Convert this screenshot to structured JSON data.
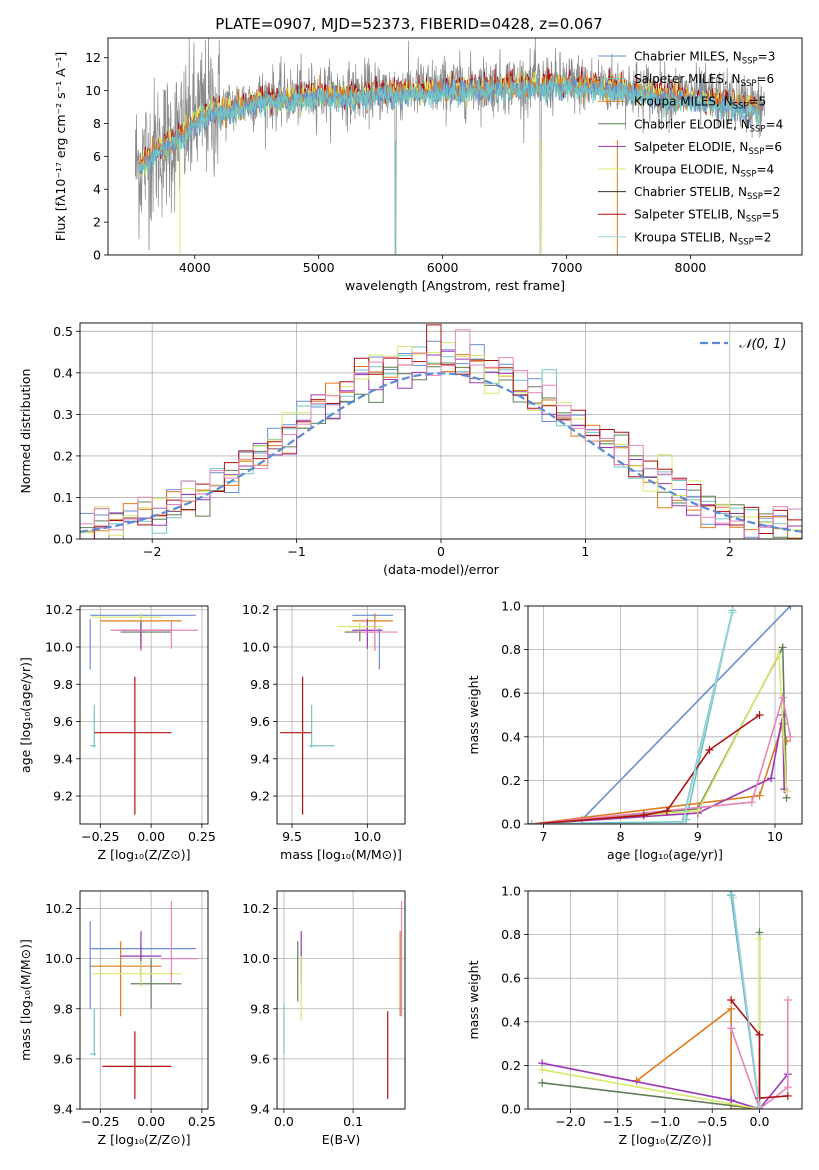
{
  "colors": {
    "chabrier_miles": "#6a8fd0",
    "salpeter_miles": "#72c5c5",
    "kroupa_miles": "#df7b1e",
    "chabrier_elodie": "#5f7f55",
    "salpeter_elodie": "#9b38b5",
    "kroupa_elodie": "#d8e86a",
    "chabrier_stelib": "#333333",
    "salpeter_stelib": "#b01010",
    "kroupa_stelib": "#9fd3d8",
    "pink": "#e686b8",
    "gray": "#8a8a8a",
    "normal": "#5b8bd4"
  },
  "chart_data": [
    {
      "id": "spectrum",
      "type": "line",
      "title": "PLATE=0907, MJD=52373, FIBERID=0428, z=0.067",
      "xlabel": "wavelength [Angstrom, rest frame]",
      "ylabel": "Flux [fλ10⁻¹⁷ erg cm⁻² s⁻¹ A⁻¹]",
      "xlim": [
        3300,
        8900
      ],
      "ylim": [
        0,
        13.2
      ],
      "xticks": [
        "4000",
        "5000",
        "6000",
        "7000",
        "8000"
      ],
      "yticks": [
        "0",
        "2",
        "4",
        "6",
        "8",
        "10",
        "12"
      ],
      "legend_position": "top-right",
      "legend": [
        {
          "name": "Chabrier MILES, N",
          "sub": "SSP",
          "eq": "=3"
        },
        {
          "name": "Salpeter MILES, N",
          "sub": "SSP",
          "eq": "=6"
        },
        {
          "name": "Kroupa MILES, N",
          "sub": "SSP",
          "eq": "=5"
        },
        {
          "name": "Chabrier ELODIE, N",
          "sub": "SSP",
          "eq": "=4"
        },
        {
          "name": "Salpeter ELODIE, N",
          "sub": "SSP",
          "eq": "=6"
        },
        {
          "name": "Kroupa ELODIE, N",
          "sub": "SSP",
          "eq": "=4"
        },
        {
          "name": "Chabrier STELIB, N",
          "sub": "SSP",
          "eq": "=2"
        },
        {
          "name": "Salpeter STELIB, N",
          "sub": "SSP",
          "eq": "=5"
        },
        {
          "name": "Kroupa STELIB, N",
          "sub": "SSP",
          "eq": "=2"
        }
      ],
      "continuum": [
        [
          3550,
          5.5
        ],
        [
          3700,
          6.5
        ],
        [
          3900,
          7.4
        ],
        [
          4000,
          8.3
        ],
        [
          4100,
          8.9
        ],
        [
          4300,
          9.0
        ],
        [
          4500,
          9.5
        ],
        [
          4800,
          9.7
        ],
        [
          5000,
          9.9
        ],
        [
          5200,
          9.8
        ],
        [
          5500,
          10.0
        ],
        [
          6000,
          10.2
        ],
        [
          6500,
          10.4
        ],
        [
          7000,
          10.5
        ],
        [
          7400,
          10.3
        ],
        [
          7800,
          9.8
        ],
        [
          8200,
          9.5
        ],
        [
          8600,
          9.0
        ]
      ]
    },
    {
      "id": "residuals",
      "type": "histogram",
      "xlabel": "(data-model)/error",
      "ylabel": "Normed distribution",
      "xlim": [
        -2.5,
        2.5
      ],
      "ylim": [
        0,
        0.52
      ],
      "xticks": [
        "−2",
        "−1",
        "0",
        "1",
        "2"
      ],
      "yticks": [
        "0.0",
        "0.1",
        "0.2",
        "0.3",
        "0.4",
        "0.5"
      ],
      "legend_label": "𝒩(0, 1)",
      "bin_width": 0.1
    },
    {
      "id": "age_vs_Z",
      "type": "errorbar",
      "xlabel": "Z [log₁₀(Z/Z⊙)]",
      "ylabel": "age  [log₁₀(age/yr)]",
      "xlim": [
        -0.35,
        0.28
      ],
      "ylim": [
        9.05,
        10.22
      ],
      "xticks": [
        "−0.25",
        "0.00",
        "0.25"
      ],
      "yticks": [
        "9.2",
        "9.4",
        "9.6",
        "9.8",
        "10.0",
        "10.2"
      ],
      "points": [
        {
          "c": "chabrier_miles",
          "x": -0.05,
          "xe": [
            0.25,
            0.27
          ],
          "y": 10.17,
          "ye": [
            0.01,
            0.01
          ]
        },
        {
          "c": "salpeter_miles",
          "x": -0.28,
          "xe": [
            0.02,
            0.01
          ],
          "y": 9.47,
          "ye": [
            0.01,
            0.22
          ]
        },
        {
          "c": "kroupa_miles",
          "x": -0.05,
          "xe": [
            0.2,
            0.2
          ],
          "y": 10.14,
          "ye": [
            0.16,
            0.04
          ]
        },
        {
          "c": "chabrier_elodie",
          "x": -0.05,
          "xe": [
            0.1,
            0.15
          ],
          "y": 10.08,
          "ye": [
            0.05,
            0.03
          ]
        },
        {
          "c": "salpeter_elodie",
          "x": -0.05,
          "xe": [
            0.11,
            0.15
          ],
          "y": 10.09,
          "ye": [
            0.1,
            0.06
          ]
        },
        {
          "c": "kroupa_elodie",
          "x": -0.05,
          "xe": [
            0.24,
            0.1
          ],
          "y": 10.16,
          "ye": [
            0.02,
            0.02
          ]
        },
        {
          "c": "pink",
          "x": 0.1,
          "xe": [
            0.3,
            0.13
          ],
          "y": 10.09,
          "ye": [
            0.1,
            0.05
          ]
        },
        {
          "c": "salpeter_stelib",
          "x": -0.08,
          "xe": [
            0.2,
            0.18
          ],
          "y": 9.54,
          "ye": [
            0.44,
            0.3
          ]
        },
        {
          "c": "chabrier_miles",
          "x": -0.3,
          "xe": [
            0.0,
            0.0
          ],
          "y": 10.05,
          "ye": [
            0.17,
            0.1
          ]
        }
      ]
    },
    {
      "id": "age_vs_mass",
      "type": "errorbar",
      "xlabel": "mass [log₁₀(M/M⊙)]",
      "xlim": [
        9.4,
        10.25
      ],
      "ylim": [
        9.05,
        10.22
      ],
      "xticks": [
        "9.5",
        "10.0"
      ],
      "yticks": [
        "9.2",
        "9.4",
        "9.6",
        "9.8",
        "10.0",
        "10.2"
      ],
      "points": [
        {
          "c": "chabrier_miles",
          "x": 10.05,
          "xe": [
            0.15,
            0.12
          ],
          "y": 10.17,
          "ye": [
            0.01,
            0.01
          ]
        },
        {
          "c": "salpeter_miles",
          "x": 9.63,
          "xe": [
            0.02,
            0.15
          ],
          "y": 9.47,
          "ye": [
            0.01,
            0.22
          ]
        },
        {
          "c": "kroupa_miles",
          "x": 10.05,
          "xe": [
            0.15,
            0.12
          ],
          "y": 10.14,
          "ye": [
            0.16,
            0.04
          ]
        },
        {
          "c": "chabrier_elodie",
          "x": 9.95,
          "xe": [
            0.1,
            0.1
          ],
          "y": 10.08,
          "ye": [
            0.05,
            0.03
          ]
        },
        {
          "c": "salpeter_elodie",
          "x": 10.0,
          "xe": [
            0.1,
            0.1
          ],
          "y": 10.09,
          "ye": [
            0.1,
            0.06
          ]
        },
        {
          "c": "kroupa_elodie",
          "x": 9.95,
          "xe": [
            0.15,
            0.15
          ],
          "y": 10.11,
          "ye": [
            0.02,
            0.02
          ]
        },
        {
          "c": "pink",
          "x": 10.05,
          "xe": [
            0.12,
            0.15
          ],
          "y": 10.08,
          "ye": [
            0.1,
            0.05
          ]
        },
        {
          "c": "salpeter_stelib",
          "x": 9.57,
          "xe": [
            0.15,
            0.06
          ],
          "y": 9.54,
          "ye": [
            0.44,
            0.3
          ]
        },
        {
          "c": "chabrier_miles",
          "x": 10.08,
          "xe": [
            0.0,
            0.0
          ],
          "y": 10.0,
          "ye": [
            0.12,
            0.1
          ]
        }
      ]
    },
    {
      "id": "weight_vs_age",
      "type": "line",
      "xlabel": "age  [log₁₀(age/yr)]",
      "ylabel": "mass weight",
      "xlim": [
        6.8,
        10.35
      ],
      "ylim": [
        0,
        1.0
      ],
      "xticks": [
        "7",
        "8",
        "9",
        "10"
      ],
      "yticks": [
        "0.0",
        "0.2",
        "0.4",
        "0.6",
        "0.8",
        "1.0"
      ],
      "series": [
        {
          "c": "chabrier_miles",
          "points": [
            [
              6.85,
              0.0
            ],
            [
              7.5,
              0.02
            ],
            [
              10.2,
              1.0
            ]
          ]
        },
        {
          "c": "salpeter_miles",
          "points": [
            [
              6.85,
              0.0
            ],
            [
              8.8,
              0.01
            ],
            [
              9.45,
              0.98
            ],
            [
              8.85,
              0.02
            ]
          ]
        },
        {
          "c": "kroupa_miles",
          "points": [
            [
              6.85,
              0.0
            ],
            [
              9.8,
              0.13
            ],
            [
              10.1,
              0.46
            ],
            [
              10.15,
              0.38
            ]
          ]
        },
        {
          "c": "chabrier_elodie",
          "points": [
            [
              6.85,
              0.0
            ],
            [
              9.0,
              0.07
            ],
            [
              10.1,
              0.81
            ],
            [
              10.15,
              0.12
            ]
          ]
        },
        {
          "c": "salpeter_elodie",
          "points": [
            [
              6.85,
              0.0
            ],
            [
              9.0,
              0.05
            ],
            [
              9.95,
              0.21
            ],
            [
              10.1,
              0.5
            ],
            [
              10.12,
              0.16
            ]
          ]
        },
        {
          "c": "kroupa_elodie",
          "points": [
            [
              6.85,
              0.0
            ],
            [
              9.0,
              0.06
            ],
            [
              10.05,
              0.78
            ],
            [
              10.15,
              0.15
            ]
          ]
        },
        {
          "c": "pink",
          "points": [
            [
              6.85,
              0.0
            ],
            [
              9.7,
              0.1
            ],
            [
              10.1,
              0.58
            ],
            [
              10.2,
              0.4
            ]
          ]
        },
        {
          "c": "salpeter_stelib",
          "points": [
            [
              6.85,
              0.0
            ],
            [
              8.3,
              0.04
            ],
            [
              8.6,
              0.06
            ],
            [
              9.15,
              0.34
            ],
            [
              9.8,
              0.5
            ]
          ]
        },
        {
          "c": "kroupa_stelib",
          "points": [
            [
              6.85,
              0.0
            ],
            [
              8.8,
              0.0
            ],
            [
              9.45,
              0.97
            ]
          ]
        }
      ]
    },
    {
      "id": "mass_vs_Z",
      "type": "errorbar",
      "xlabel": "Z [log₁₀(Z/Z⊙)]",
      "ylabel": "mass [log₁₀(M/M⊙)]",
      "xlim": [
        -0.35,
        0.28
      ],
      "ylim": [
        9.4,
        10.27
      ],
      "xticks": [
        "−0.25",
        "0.00",
        "0.25"
      ],
      "yticks": [
        "9.4",
        "9.6",
        "9.8",
        "10.0",
        "10.2"
      ],
      "points": [
        {
          "c": "chabrier_miles",
          "x": -0.05,
          "xe": [
            0.25,
            0.27
          ],
          "y": 10.04,
          "ye": [
            0.11,
            0.02
          ]
        },
        {
          "c": "salpeter_miles",
          "x": -0.28,
          "xe": [
            0.02,
            0.01
          ],
          "y": 9.62,
          "ye": [
            0.01,
            0.18
          ]
        },
        {
          "c": "kroupa_miles",
          "x": -0.15,
          "xe": [
            0.15,
            0.2
          ],
          "y": 9.97,
          "ye": [
            0.2,
            0.1
          ]
        },
        {
          "c": "chabrier_elodie",
          "x": 0.0,
          "xe": [
            0.1,
            0.15
          ],
          "y": 9.9,
          "ye": [
            0.1,
            0.1
          ]
        },
        {
          "c": "salpeter_elodie",
          "x": -0.05,
          "xe": [
            0.1,
            0.1
          ],
          "y": 10.01,
          "ye": [
            0.12,
            0.1
          ]
        },
        {
          "c": "kroupa_elodie",
          "x": -0.05,
          "xe": [
            0.24,
            0.2
          ],
          "y": 9.94,
          "ye": [
            0.05,
            0.05
          ]
        },
        {
          "c": "pink",
          "x": 0.1,
          "xe": [
            0.05,
            0.13
          ],
          "y": 10.0,
          "ye": [
            0.1,
            0.23
          ]
        },
        {
          "c": "salpeter_stelib",
          "x": -0.08,
          "xe": [
            0.16,
            0.18
          ],
          "y": 9.57,
          "ye": [
            0.13,
            0.14
          ]
        },
        {
          "c": "chabrier_miles",
          "x": -0.3,
          "xe": [
            0.0,
            0.0
          ],
          "y": 9.95,
          "ye": [
            0.15,
            0.2
          ]
        }
      ]
    },
    {
      "id": "mass_vs_ebv",
      "type": "errorbar",
      "xlabel": "E(B-V)",
      "xlim": [
        -0.01,
        0.175
      ],
      "ylim": [
        9.4,
        10.27
      ],
      "xticks": [
        "0.0",
        "0.1"
      ],
      "yticks": [
        "9.4",
        "9.6",
        "9.8",
        "10.0",
        "10.2"
      ],
      "points": [
        {
          "c": "salpeter_miles",
          "x": 0.0,
          "xe": [
            0.0,
            0.0
          ],
          "y": 9.72,
          "ye": [
            0.1,
            0.1
          ]
        },
        {
          "c": "chabrier_elodie",
          "x": 0.02,
          "xe": [
            0.0,
            0.0
          ],
          "y": 9.95,
          "ye": [
            0.12,
            0.12
          ]
        },
        {
          "c": "salpeter_elodie",
          "x": 0.025,
          "xe": [
            0.0,
            0.0
          ],
          "y": 10.0,
          "ye": [
            0.1,
            0.11
          ]
        },
        {
          "c": "kroupa_elodie",
          "x": 0.025,
          "xe": [
            0.0,
            0.0
          ],
          "y": 9.88,
          "ye": [
            0.13,
            0.13
          ]
        },
        {
          "c": "salpeter_stelib",
          "x": 0.15,
          "xe": [
            0.0,
            0.0
          ],
          "y": 9.57,
          "ye": [
            0.13,
            0.22
          ]
        },
        {
          "c": "kroupa_miles",
          "x": 0.168,
          "xe": [
            0.0,
            0.0
          ],
          "y": 9.98,
          "ye": [
            0.21,
            0.13
          ]
        },
        {
          "c": "pink",
          "x": 0.17,
          "xe": [
            0.0,
            0.0
          ],
          "y": 10.05,
          "ye": [
            0.28,
            0.18
          ]
        }
      ]
    },
    {
      "id": "weight_vs_Z",
      "type": "line",
      "xlabel": "Z [log₁₀(Z/Z⊙)]",
      "ylabel": "mass weight",
      "xlim": [
        -2.45,
        0.45
      ],
      "ylim": [
        0,
        1.0
      ],
      "xticks": [
        "−2.0",
        "−1.5",
        "−1.0",
        "−0.5",
        "0.0"
      ],
      "yticks": [
        "0.0",
        "0.2",
        "0.4",
        "0.6",
        "0.8",
        "1.0"
      ],
      "series": [
        {
          "c": "chabrier_miles",
          "points": [
            [
              -0.3,
              0.98
            ],
            [
              0.0,
              0.0
            ]
          ]
        },
        {
          "c": "salpeter_miles",
          "points": [
            [
              -0.3,
              0.98
            ],
            [
              -0.3,
              1.0
            ],
            [
              0.0,
              0.01
            ]
          ]
        },
        {
          "c": "kroupa_miles",
          "points": [
            [
              -1.3,
              0.13
            ],
            [
              -0.3,
              0.46
            ],
            [
              -0.3,
              0.0
            ],
            [
              0.0,
              0.0
            ]
          ]
        },
        {
          "c": "chabrier_elodie",
          "points": [
            [
              -2.3,
              0.12
            ],
            [
              0.0,
              0.0
            ],
            [
              0.0,
              0.81
            ]
          ]
        },
        {
          "c": "salpeter_elodie",
          "points": [
            [
              -2.3,
              0.21
            ],
            [
              -0.3,
              0.04
            ],
            [
              0.0,
              0.0
            ],
            [
              0.3,
              0.16
            ]
          ]
        },
        {
          "c": "kroupa_elodie",
          "points": [
            [
              -2.3,
              0.18
            ],
            [
              0.0,
              0.0
            ],
            [
              0.0,
              0.78
            ]
          ]
        },
        {
          "c": "pink",
          "points": [
            [
              -0.3,
              0.37
            ],
            [
              0.0,
              0.0
            ],
            [
              0.3,
              0.1
            ],
            [
              0.3,
              0.5
            ]
          ]
        },
        {
          "c": "salpeter_stelib",
          "points": [
            [
              -0.3,
              0.5
            ],
            [
              0.0,
              0.34
            ],
            [
              0.0,
              0.05
            ],
            [
              0.3,
              0.06
            ]
          ]
        },
        {
          "c": "kroupa_stelib",
          "points": [
            [
              -0.28,
              0.97
            ],
            [
              0.0,
              0.01
            ]
          ]
        }
      ]
    }
  ]
}
